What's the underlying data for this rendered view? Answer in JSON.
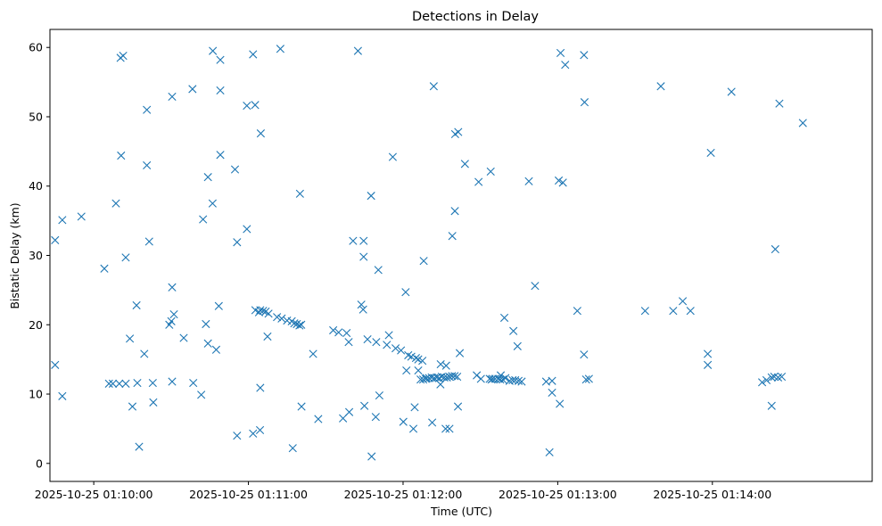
{
  "chart_data": {
    "type": "scatter",
    "title": "Detections in Delay",
    "xlabel": "Time (UTC)",
    "ylabel": "Bistatic Delay (km)",
    "marker": "x",
    "color": "#1f77b4",
    "x_unit": "seconds after 2025-10-25 01:10:00 UTC",
    "xlim": [
      -17,
      302
    ],
    "ylim": [
      -2.6,
      62.6
    ],
    "x_ticks": [
      {
        "value": 0,
        "label": "2025-10-25 01:10:00"
      },
      {
        "value": 60,
        "label": "2025-10-25 01:11:00"
      },
      {
        "value": 120,
        "label": "2025-10-25 01:12:00"
      },
      {
        "value": 180,
        "label": "2025-10-25 01:13:00"
      },
      {
        "value": 240,
        "label": "2025-10-25 01:14:00"
      }
    ],
    "y_ticks": [
      0,
      10,
      20,
      30,
      40,
      50,
      60
    ],
    "points": [
      [
        -15.0,
        32.2
      ],
      [
        -15.0,
        14.2
      ],
      [
        -12.2,
        35.1
      ],
      [
        -12.2,
        9.7
      ],
      [
        -4.8,
        35.6
      ],
      [
        4.1,
        28.1
      ],
      [
        8.6,
        37.5
      ],
      [
        10.4,
        58.5
      ],
      [
        11.4,
        58.8
      ],
      [
        10.6,
        44.4
      ],
      [
        12.4,
        29.7
      ],
      [
        14.0,
        18.0
      ],
      [
        15.0,
        8.2
      ],
      [
        16.6,
        22.8
      ],
      [
        17.6,
        2.4
      ],
      [
        19.6,
        15.8
      ],
      [
        20.6,
        51.0
      ],
      [
        20.6,
        43.0
      ],
      [
        21.5,
        32.0
      ],
      [
        23.1,
        8.8
      ],
      [
        29.3,
        20.0
      ],
      [
        30.1,
        20.5
      ],
      [
        31.1,
        21.5
      ],
      [
        30.4,
        25.4
      ],
      [
        30.4,
        11.8
      ],
      [
        30.4,
        52.9
      ],
      [
        34.9,
        18.1
      ],
      [
        38.3,
        54.0
      ],
      [
        41.7,
        9.9
      ],
      [
        42.4,
        35.2
      ],
      [
        43.5,
        20.1
      ],
      [
        44.3,
        17.3
      ],
      [
        44.3,
        41.3
      ],
      [
        46.1,
        37.5
      ],
      [
        46.2,
        59.5
      ],
      [
        47.5,
        16.4
      ],
      [
        48.5,
        22.7
      ],
      [
        49.1,
        58.2
      ],
      [
        49.1,
        53.8
      ],
      [
        49.1,
        44.5
      ],
      [
        54.8,
        42.4
      ],
      [
        55.6,
        31.9
      ],
      [
        55.6,
        4.0
      ],
      [
        59.4,
        33.8
      ],
      [
        59.4,
        51.6
      ],
      [
        61.8,
        59.0
      ],
      [
        62.6,
        51.7
      ],
      [
        61.8,
        4.3
      ],
      [
        64.8,
        47.6
      ],
      [
        64.5,
        4.8
      ],
      [
        64.6,
        10.9
      ],
      [
        67.4,
        18.3
      ],
      [
        72.4,
        59.8
      ],
      [
        77.2,
        2.2
      ],
      [
        80.0,
        38.9
      ],
      [
        80.6,
        8.2
      ],
      [
        85.1,
        15.8
      ],
      [
        87.1,
        6.4
      ],
      [
        102.5,
        59.5
      ],
      [
        105.0,
        8.3
      ],
      [
        107.8,
        1.0
      ],
      [
        109.4,
        6.7
      ],
      [
        110.4,
        27.9
      ],
      [
        110.8,
        9.8
      ],
      [
        116.0,
        44.2
      ],
      [
        120.1,
        6.0
      ],
      [
        121.0,
        24.7
      ],
      [
        124.0,
        5.0
      ],
      [
        124.5,
        8.1
      ],
      [
        131.3,
        5.9
      ],
      [
        136.5,
        5.0
      ],
      [
        138.0,
        5.0
      ],
      [
        141.3,
        8.2
      ],
      [
        144.0,
        43.2
      ],
      [
        149.3,
        40.6
      ],
      [
        154.0,
        42.1
      ],
      [
        168.8,
        40.7
      ],
      [
        180.4,
        40.8
      ],
      [
        182.0,
        40.5
      ],
      [
        181.1,
        59.2
      ],
      [
        182.9,
        57.5
      ],
      [
        190.2,
        58.9
      ],
      [
        190.4,
        52.1
      ],
      [
        220.0,
        54.4
      ],
      [
        239.4,
        44.8
      ],
      [
        247.4,
        53.6
      ],
      [
        228.5,
        23.4
      ],
      [
        224.8,
        22.0
      ],
      [
        213.9,
        22.0
      ],
      [
        231.5,
        22.0
      ],
      [
        171.2,
        25.6
      ],
      [
        187.6,
        22.0
      ],
      [
        190.2,
        15.7
      ],
      [
        191.0,
        12.1
      ],
      [
        192.1,
        12.2
      ],
      [
        175.5,
        11.8
      ],
      [
        177.8,
        11.9
      ],
      [
        177.8,
        10.2
      ],
      [
        176.8,
        1.6
      ],
      [
        180.8,
        8.6
      ],
      [
        238.2,
        15.8
      ],
      [
        238.2,
        14.2
      ],
      [
        259.3,
        11.7
      ],
      [
        261.0,
        12.0
      ],
      [
        263.0,
        12.4
      ],
      [
        264.0,
        12.5
      ],
      [
        265.5,
        12.4
      ],
      [
        266.9,
        12.5
      ],
      [
        263.0,
        8.3
      ],
      [
        264.4,
        30.9
      ],
      [
        266.0,
        51.9
      ],
      [
        275.1,
        49.1
      ],
      [
        9.9,
        11.5
      ],
      [
        7.4,
        11.5
      ],
      [
        5.9,
        11.5
      ],
      [
        12.4,
        11.5
      ],
      [
        16.9,
        11.6
      ],
      [
        22.9,
        11.6
      ],
      [
        38.6,
        11.6
      ],
      [
        99.1,
        7.4
      ],
      [
        96.7,
        6.5
      ],
      [
        98.1,
        18.8
      ],
      [
        98.9,
        17.5
      ],
      [
        100.6,
        32.1
      ],
      [
        104.7,
        32.1
      ],
      [
        104.7,
        29.8
      ],
      [
        107.6,
        38.6
      ],
      [
        103.8,
        22.9
      ],
      [
        104.5,
        22.2
      ],
      [
        106.2,
        17.9
      ],
      [
        109.6,
        17.5
      ],
      [
        113.7,
        17.1
      ],
      [
        114.5,
        18.5
      ],
      [
        117.1,
        16.6
      ],
      [
        119.2,
        16.3
      ],
      [
        121.3,
        13.4
      ],
      [
        125.9,
        13.4
      ],
      [
        128.0,
        29.2
      ],
      [
        131.9,
        54.4
      ],
      [
        134.6,
        14.3
      ],
      [
        136.7,
        14.1
      ],
      [
        139.1,
        32.8
      ],
      [
        140.1,
        36.4
      ],
      [
        140.2,
        47.5
      ],
      [
        141.4,
        47.8
      ],
      [
        142.0,
        15.9
      ],
      [
        159.3,
        21.0
      ],
      [
        162.8,
        19.1
      ],
      [
        164.4,
        16.9
      ],
      [
        157.9,
        12.7
      ],
      [
        159.7,
        12.3
      ],
      [
        161.3,
        11.9
      ],
      [
        162.5,
        12.0
      ],
      [
        163.5,
        12.0
      ],
      [
        164.8,
        11.9
      ],
      [
        166.0,
        11.8
      ],
      [
        65.7,
        22.0
      ],
      [
        66.7,
        21.9
      ],
      [
        67.8,
        21.6
      ],
      [
        71.1,
        21.1
      ],
      [
        72.9,
        20.9
      ],
      [
        75.0,
        20.6
      ],
      [
        76.8,
        20.5
      ],
      [
        77.8,
        20.2
      ],
      [
        78.8,
        20.1
      ],
      [
        79.8,
        19.9
      ],
      [
        80.5,
        20.0
      ],
      [
        64.6,
        22.1
      ],
      [
        64.1,
        21.8
      ],
      [
        62.7,
        22.1
      ],
      [
        92.9,
        19.2
      ],
      [
        95.0,
        18.9
      ],
      [
        129.1,
        12.3
      ],
      [
        130.1,
        12.3
      ],
      [
        131.1,
        12.4
      ],
      [
        132.1,
        12.3
      ],
      [
        133.1,
        12.4
      ],
      [
        134.0,
        12.3
      ],
      [
        135.0,
        12.5
      ],
      [
        136.0,
        12.4
      ],
      [
        137.0,
        12.4
      ],
      [
        138.0,
        12.5
      ],
      [
        139.0,
        12.6
      ],
      [
        140.0,
        12.6
      ],
      [
        141.0,
        12.5
      ],
      [
        134.5,
        11.4
      ],
      [
        127.8,
        12.1
      ],
      [
        128.8,
        12.2
      ],
      [
        126.8,
        12.1
      ],
      [
        122.0,
        15.6
      ],
      [
        123.2,
        15.4
      ],
      [
        125.0,
        15.2
      ],
      [
        125.9,
        15.0
      ],
      [
        127.5,
        14.8
      ],
      [
        148.6,
        12.7
      ],
      [
        150.2,
        12.2
      ],
      [
        153.6,
        12.2
      ],
      [
        154.8,
        12.2
      ],
      [
        155.7,
        12.2
      ],
      [
        157.0,
        12.2
      ],
      [
        157.7,
        12.1
      ],
      [
        158.7,
        12.1
      ],
      [
        154.3,
        12.1
      ]
    ]
  }
}
